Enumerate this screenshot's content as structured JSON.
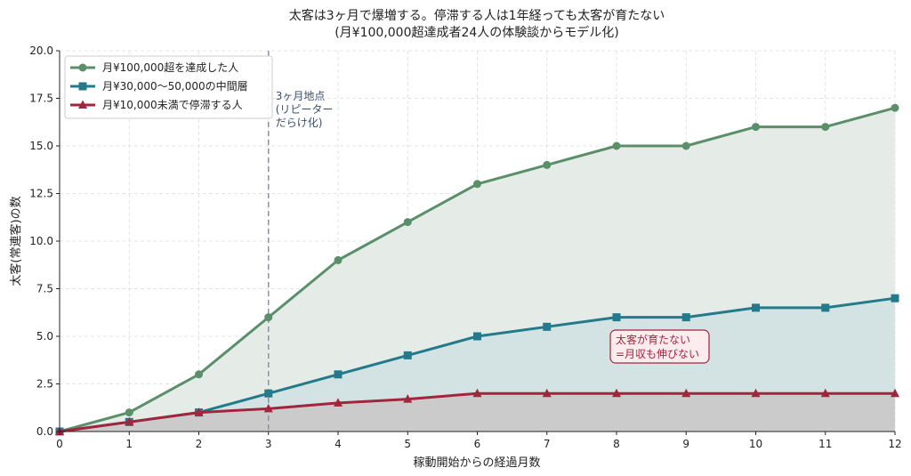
{
  "chart_data": {
    "type": "line",
    "title": "太客は3ヶ月で爆増する。停滞する人は1年経っても太客が育たない",
    "subtitle": "(月¥100,000超達成者24人の体験談からモデル化)",
    "xlabel": "稼動開始からの経過月数",
    "ylabel": "太客(常連客)の数",
    "x": [
      0,
      1,
      2,
      3,
      4,
      5,
      6,
      7,
      8,
      9,
      10,
      11,
      12
    ],
    "xlim": [
      0,
      12
    ],
    "ylim": [
      0,
      20
    ],
    "x_ticks": [
      "0",
      "1",
      "2",
      "3",
      "4",
      "5",
      "6",
      "7",
      "8",
      "9",
      "10",
      "11",
      "12"
    ],
    "y_ticks": [
      "0.0",
      "2.5",
      "5.0",
      "7.5",
      "10.0",
      "12.5",
      "15.0",
      "17.5",
      "20.0"
    ],
    "grid": true,
    "legend_position": "top-left",
    "series": [
      {
        "name": "月¥100,000超を達成した人",
        "color": "#5b8f6a",
        "marker": "circle",
        "values": [
          0,
          1,
          3,
          6,
          9,
          11,
          13,
          14,
          15,
          15,
          16,
          16,
          17
        ]
      },
      {
        "name": "月¥30,000〜50,000の中間層",
        "color": "#237a8a",
        "marker": "square",
        "values": [
          0,
          0.5,
          1,
          2,
          3,
          4,
          5,
          5.5,
          6,
          6,
          6.5,
          6.5,
          7
        ]
      },
      {
        "name": "月¥10,000未満で停滞する人",
        "color": "#a3253d",
        "marker": "triangle",
        "values": [
          0,
          0.5,
          1,
          1.2,
          1.5,
          1.7,
          2,
          2,
          2,
          2,
          2,
          2,
          2
        ]
      }
    ],
    "annotations": [
      {
        "text_lines": [
          "3ヶ月地点",
          "(リピーター",
          "だらけ化)"
        ],
        "x": 3,
        "y": 18,
        "color": "#3d4f6b"
      },
      {
        "text_lines": [
          "太客が育たない",
          "=月収も伸びない"
        ],
        "x": 8,
        "y": 4.5,
        "color": "#a3253d"
      }
    ],
    "reference_line_x": 3
  }
}
